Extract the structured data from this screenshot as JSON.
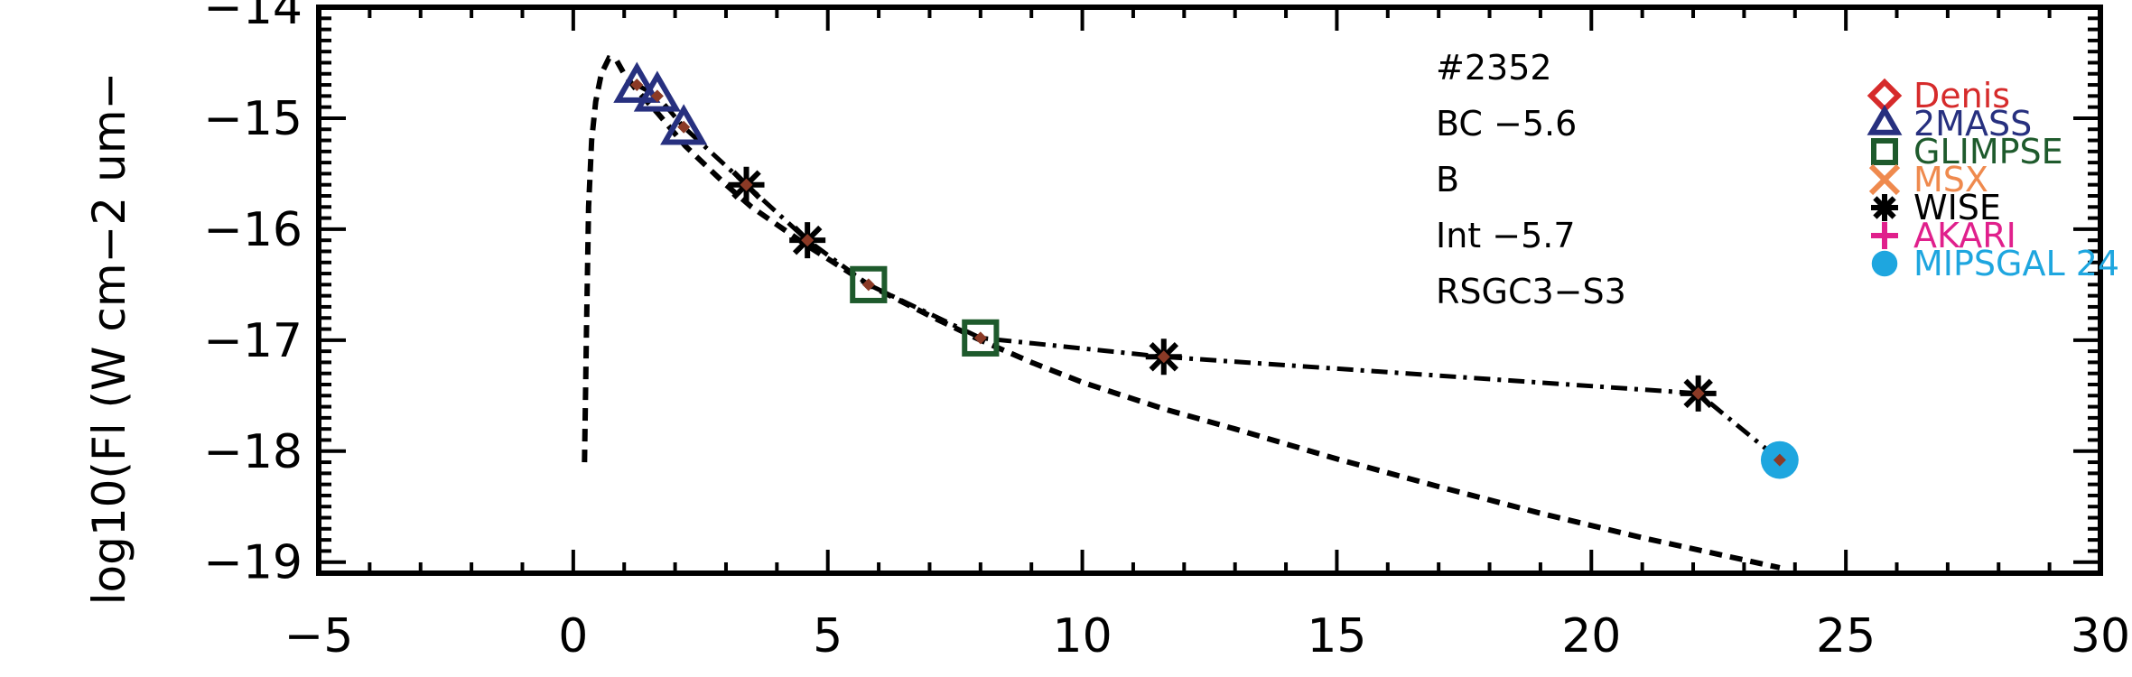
{
  "chart_data": {
    "type": "scatter",
    "ylabel": "log10(Fl (W cm−2 um−",
    "xlim": [
      -5,
      30
    ],
    "ylim": [
      -19.1,
      -14
    ],
    "x_ticks": [
      -5,
      0,
      5,
      10,
      15,
      20,
      25,
      30
    ],
    "x_tick_labels": [
      "−5",
      "0",
      "5",
      "10",
      "15",
      "20",
      "25",
      "30"
    ],
    "y_ticks": [
      -19,
      -18,
      -17,
      -16,
      -15,
      -14
    ],
    "y_tick_labels": [
      "−19",
      "−18",
      "−17",
      "−16",
      "−15",
      "−14"
    ],
    "annotations": [
      "#2352",
      "BC −5.6",
      "B",
      "Int −5.7",
      "RSGC3−S3"
    ],
    "legend": {
      "position": "top-right",
      "entries": [
        {
          "label": "Denis",
          "color": "#d62b2b",
          "marker": "diamond"
        },
        {
          "label": "2MASS",
          "color": "#27307f",
          "marker": "triangle"
        },
        {
          "label": "GLIMPSE",
          "color": "#1e5a2c",
          "marker": "square"
        },
        {
          "label": "MSX",
          "color": "#ef8a4e",
          "marker": "x"
        },
        {
          "label": "WISE",
          "color": "#000000",
          "marker": "asterisk"
        },
        {
          "label": "AKARI",
          "color": "#e0208c",
          "marker": "plus"
        },
        {
          "label": "MIPSGAL 24",
          "color": "#1ea6df",
          "marker": "circle"
        }
      ]
    },
    "series": [
      {
        "survey": "2MASS",
        "x": [
          1.25,
          1.65,
          2.17
        ],
        "y": [
          -14.72,
          -14.8,
          -15.1
        ]
      },
      {
        "survey": "WISE",
        "x": [
          3.4,
          4.6,
          11.6,
          22.1
        ],
        "y": [
          -15.6,
          -16.1,
          -17.15,
          -17.48
        ]
      },
      {
        "survey": "GLIMPSE",
        "x": [
          5.8,
          8.0
        ],
        "y": [
          -16.5,
          -16.98
        ]
      },
      {
        "survey": "MIPSGAL 24",
        "x": [
          23.7
        ],
        "y": [
          -18.08
        ]
      }
    ],
    "observed_points": {
      "x": [
        1.25,
        1.65,
        2.17,
        3.4,
        4.6,
        5.8,
        8.0,
        11.6,
        22.1,
        23.7
      ],
      "y": [
        -14.7,
        -14.8,
        -15.08,
        -15.6,
        -16.1,
        -16.5,
        -16.98,
        -17.15,
        -17.48,
        -18.08
      ]
    },
    "model_curve": {
      "style": "dashed",
      "x": [
        0.22,
        0.26,
        0.3,
        0.36,
        0.44,
        0.55,
        0.7,
        0.85,
        1.0,
        1.25,
        1.65,
        2.2,
        3.0,
        3.5,
        4.6,
        5.8,
        7.0,
        8.0,
        9.0,
        10.0,
        11.6,
        13.0,
        15.0,
        17.0,
        19.0,
        21.0,
        23.7
      ],
      "y": [
        -18.1,
        -16.9,
        -15.8,
        -15.2,
        -14.85,
        -14.6,
        -14.46,
        -14.48,
        -14.6,
        -14.75,
        -14.95,
        -15.25,
        -15.6,
        -15.8,
        -16.15,
        -16.5,
        -16.78,
        -17.0,
        -17.2,
        -17.38,
        -17.62,
        -17.8,
        -18.07,
        -18.32,
        -18.56,
        -18.78,
        -19.05
      ]
    },
    "connecting_line": {
      "style": "dash-dot",
      "x": [
        1.25,
        1.65,
        2.17,
        3.4,
        4.6,
        5.8,
        8.0,
        11.6,
        22.1,
        23.7
      ],
      "y": [
        -14.7,
        -14.8,
        -15.08,
        -15.6,
        -16.1,
        -16.5,
        -16.98,
        -17.15,
        -17.48,
        -18.08
      ]
    }
  }
}
